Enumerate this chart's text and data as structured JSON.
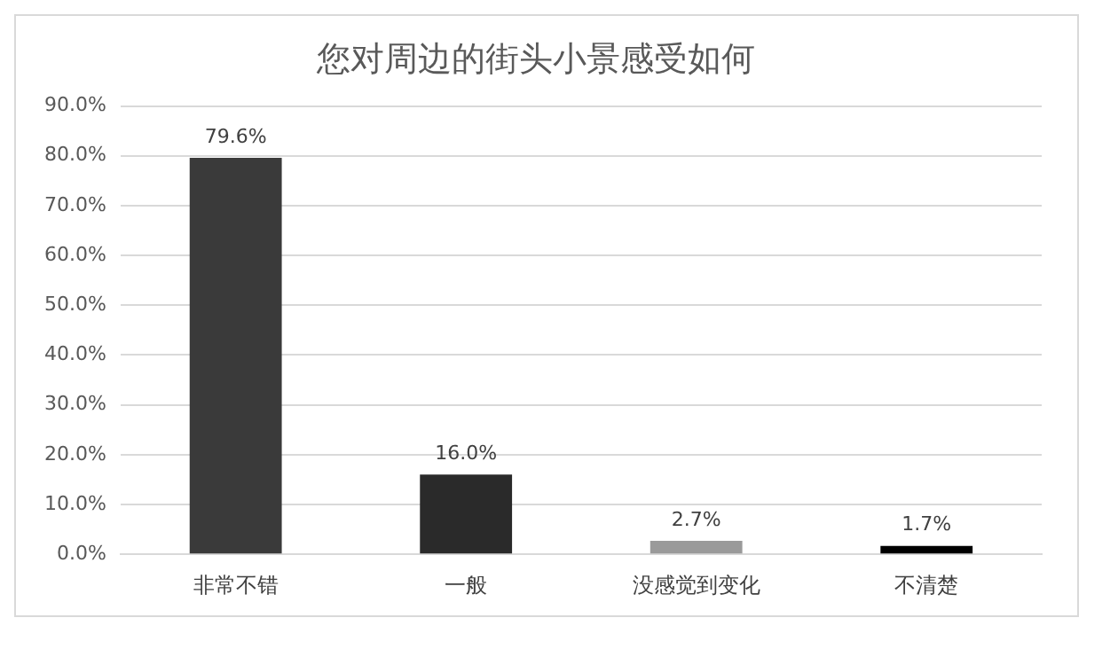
{
  "chart_data": {
    "type": "bar",
    "title": "您对周边的街头小景感受如何",
    "categories": [
      "非常不错",
      "一般",
      "没感觉到变化",
      "不清楚"
    ],
    "values": [
      79.6,
      16.0,
      2.7,
      1.7
    ],
    "colors": [
      "#3a3a3a",
      "#2a2a2a",
      "#9a9a9a",
      "#000000"
    ],
    "value_labels": [
      "79.6%",
      "16.0%",
      "2.7%",
      "1.7%"
    ],
    "ylim": [
      0,
      90
    ],
    "yticks": [
      {
        "value": 0,
        "label": "0.0%"
      },
      {
        "value": 10,
        "label": "10.0%"
      },
      {
        "value": 20,
        "label": "20.0%"
      },
      {
        "value": 30,
        "label": "30.0%"
      },
      {
        "value": 40,
        "label": "40.0%"
      },
      {
        "value": 50,
        "label": "50.0%"
      },
      {
        "value": 60,
        "label": "60.0%"
      },
      {
        "value": 70,
        "label": "70.0%"
      },
      {
        "value": 80,
        "label": "80.0%"
      },
      {
        "value": 90,
        "label": "90.0%"
      }
    ],
    "grid": "y"
  }
}
